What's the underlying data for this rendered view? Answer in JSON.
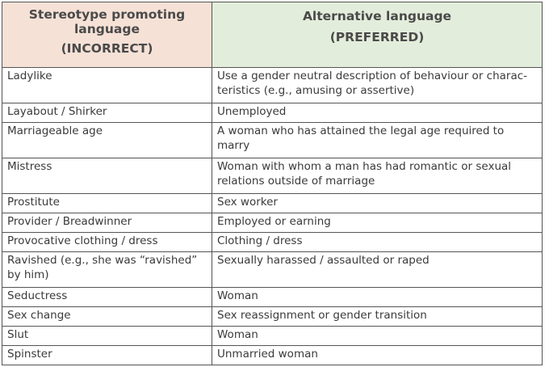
{
  "header": {
    "left_title": "Stereotype promoting language",
    "left_sub": "(INCORRECT)",
    "right_title": "Alternative language",
    "right_sub": "(PREFERRED)",
    "left_color": "#f6e1d6",
    "right_color": "#e3eddb"
  },
  "rows": [
    {
      "incorrect": "Ladylike",
      "preferred": "Use a gender neutral description of behaviour or charac-teristics (e.g., amusing or assertive)"
    },
    {
      "incorrect": "Layabout / Shirker",
      "preferred": "Unemployed"
    },
    {
      "incorrect": "Marriageable age",
      "preferred": "A woman who has attained the legal age required to marry"
    },
    {
      "incorrect": "Mistress",
      "preferred": "Woman with whom a man has had romantic or sexual relations outside of marriage"
    },
    {
      "incorrect": "Prostitute",
      "preferred": "Sex worker"
    },
    {
      "incorrect": "Provider / Breadwinner",
      "preferred": "Employed or earning"
    },
    {
      "incorrect": "Provocative clothing / dress",
      "preferred": "Clothing / dress"
    },
    {
      "incorrect": "Ravished (e.g., she was “ravished” by him)",
      "preferred": "Sexually harassed / assaulted or raped"
    },
    {
      "incorrect": "Seductress",
      "preferred": "Woman"
    },
    {
      "incorrect": "Sex change",
      "preferred": "Sex reassignment or gender transition"
    },
    {
      "incorrect": "Slut",
      "preferred": "Woman"
    },
    {
      "incorrect": "Spinster",
      "preferred": "Unmarried woman"
    }
  ]
}
